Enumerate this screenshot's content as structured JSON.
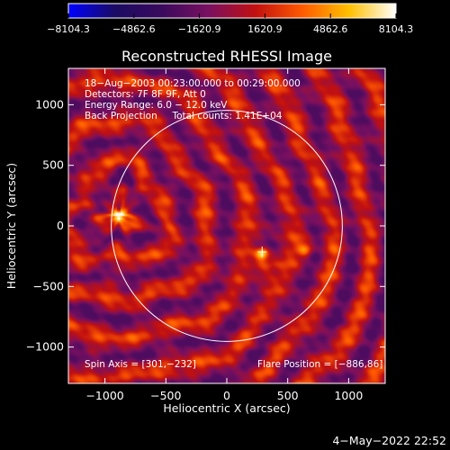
{
  "chart_data": {
    "type": "heatmap",
    "title": "Reconstructed RHESSI Image",
    "xlabel": "Heliocentric X (arcsec)",
    "ylabel": "Heliocentric Y (arcsec)",
    "xlim": [
      -1300,
      1300
    ],
    "ylim": [
      -1300,
      1300
    ],
    "xticks": [
      -1000,
      -500,
      0,
      500,
      1000
    ],
    "xtick_labels": [
      "−1000",
      "−500",
      "0",
      "500",
      "1000"
    ],
    "yticks": [
      -1000,
      -500,
      0,
      500,
      1000
    ],
    "ytick_labels": [
      "−1000",
      "−500",
      "0",
      "500",
      "1000"
    ],
    "colorbar": {
      "min": -8104.3,
      "max": 8104.3,
      "ticks": [
        -8104.3,
        -4862.6,
        -1620.9,
        1620.9,
        4862.6,
        8104.3
      ],
      "tick_labels": [
        "−8104.3",
        "−4862.6",
        "−1620.9",
        "1620.9",
        "4862.6",
        "8104.3"
      ],
      "colormap": [
        "#0000ff",
        "#1b0b63",
        "#3a0a5e",
        "#7a1060",
        "#c21010",
        "#ff5a00",
        "#ffc000",
        "#ffffff"
      ]
    },
    "info_lines": [
      "18−Aug−2003 00:23:00.000 to 00:29:00.000",
      "Detectors: 7F 8F 9F, Att 0",
      "Energy Range: 6.0 − 12.0 keV",
      "Back Projection     Total counts: 1.41E+04"
    ],
    "spin_axis_label": "Spin Axis = [301,−232]",
    "flare_position_label": "Flare Position = [−886,86]",
    "solar_limb": {
      "center": [
        0,
        0
      ],
      "radius": 948
    },
    "marker": {
      "x": 290,
      "y": -215
    },
    "sources": [
      {
        "x": -886,
        "y": 86,
        "value": 8104.3,
        "sigma": 38
      },
      {
        "x": 290,
        "y": -230,
        "value": 7400,
        "sigma": 36
      },
      {
        "x": 650,
        "y": -200,
        "value": 5200,
        "sigma": 45
      },
      {
        "x": 300,
        "y": -350,
        "value": 3800,
        "sigma": 60
      }
    ]
  },
  "footer": {
    "timestamp": "4−May−2022 22:52"
  }
}
